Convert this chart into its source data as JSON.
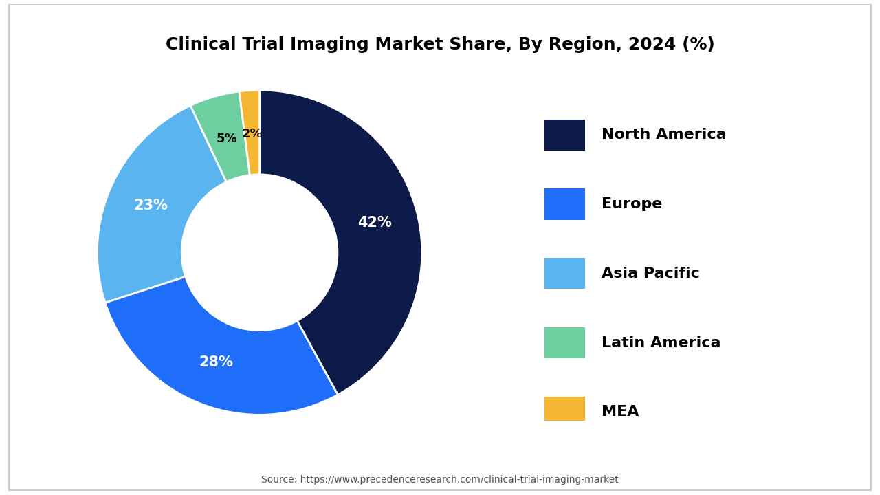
{
  "title": "Clinical Trial Imaging Market Share, By Region, 2024 (%)",
  "values": [
    42,
    28,
    23,
    5,
    2
  ],
  "labels": [
    "North America",
    "Europe",
    "Asia Pacific",
    "Latin America",
    "MEA"
  ],
  "colors": [
    "#0d1b4b",
    "#1e6efa",
    "#5ab4f0",
    "#6dcfa0",
    "#f5b731"
  ],
  "pct_labels": [
    "42%",
    "28%",
    "23%",
    "5%",
    "2%"
  ],
  "pct_colors": [
    "white",
    "white",
    "white",
    "black",
    "black"
  ],
  "source": "Source: https://www.precedenceresearch.com/clinical-trial-imaging-market",
  "bg_color": "#ffffff",
  "border_color": "#cccccc"
}
